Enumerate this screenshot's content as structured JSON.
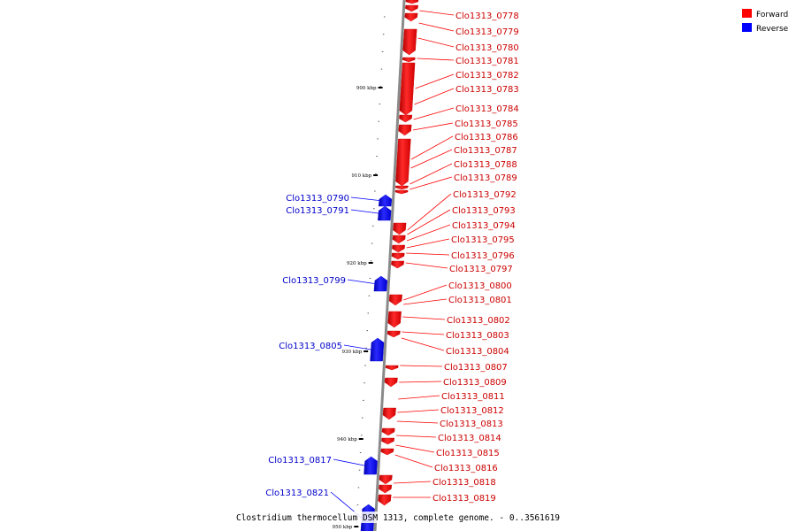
{
  "legend": [
    {
      "label": "Forward",
      "color": "#ff0000"
    },
    {
      "label": "Reverse",
      "color": "#0000ff"
    }
  ],
  "caption": "Clostridium thermocellum DSM 1313, complete genome. - 0..3561619",
  "ticks": [
    "900 kbp",
    "910 kbp",
    "920 kbp",
    "930 kbp",
    "940 kbp",
    "950 kbp"
  ],
  "forward_genes": [
    "Clo1313_0778",
    "Clo1313_0779",
    "Clo1313_0780",
    "Clo1313_0781",
    "Clo1313_0782",
    "Clo1313_0783",
    "Clo1313_0784",
    "Clo1313_0785",
    "Clo1313_0786",
    "Clo1313_0787",
    "Clo1313_0788",
    "Clo1313_0789",
    "Clo1313_0792",
    "Clo1313_0793",
    "Clo1313_0794",
    "Clo1313_0795",
    "Clo1313_0796",
    "Clo1313_0797",
    "Clo1313_0800",
    "Clo1313_0801",
    "Clo1313_0802",
    "Clo1313_0803",
    "Clo1313_0804",
    "Clo1313_0807",
    "Clo1313_0809",
    "Clo1313_0811",
    "Clo1313_0812",
    "Clo1313_0813",
    "Clo1313_0814",
    "Clo1313_0815",
    "Clo1313_0816",
    "Clo1313_0818",
    "Clo1313_0819"
  ],
  "reverse_genes": [
    "Clo1313_0790",
    "Clo1313_0791",
    "Clo1313_0799",
    "Clo1313_0805",
    "Clo1313_0817",
    "Clo1313_0821"
  ],
  "colors": {
    "forward": "#ff0000",
    "reverse": "#0000ff",
    "backbone": "#999999"
  }
}
